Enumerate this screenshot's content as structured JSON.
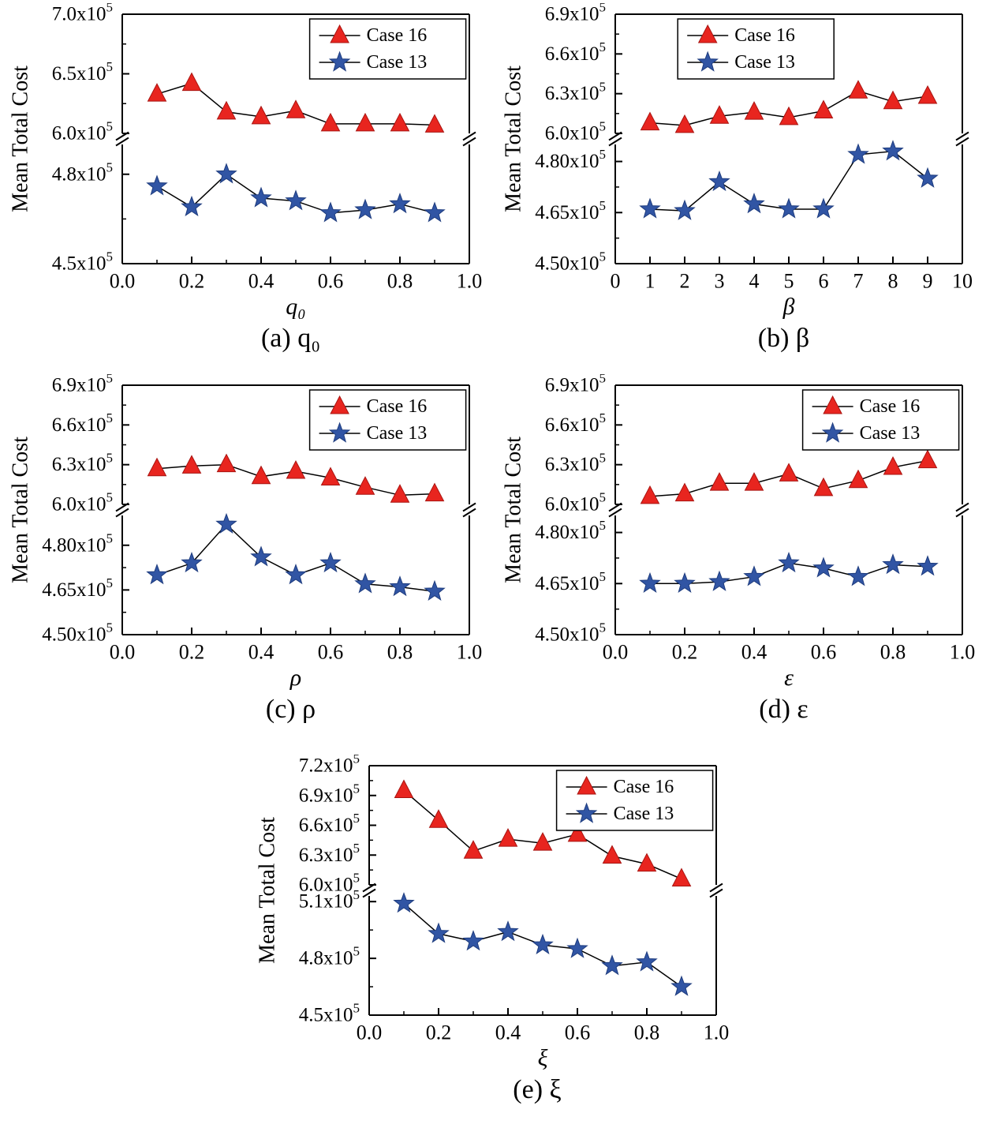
{
  "page": {
    "background": "#ffffff"
  },
  "colors": {
    "case16_fill": "#e8251f",
    "case16_edge": "#a81410",
    "case13_fill": "#3155a4",
    "case13_edge": "#1e3c7e",
    "line": "#000000",
    "axis": "#000000"
  },
  "chart_data": [
    {
      "id": "a",
      "type": "line",
      "caption": "(a) q₀",
      "xlabel": "q₀",
      "ylabel": "Mean Total Cost",
      "y_unit": "x10^5",
      "axis_break": true,
      "xlim": [
        0.0,
        1.0
      ],
      "x_ticks": [
        {
          "v": 0.0,
          "label": "0.0"
        },
        {
          "v": 0.2,
          "label": "0.2"
        },
        {
          "v": 0.4,
          "label": "0.4"
        },
        {
          "v": 0.6,
          "label": "0.6"
        },
        {
          "v": 0.8,
          "label": "0.8"
        },
        {
          "v": 1.0,
          "label": "1.0"
        }
      ],
      "x_minors": [
        0.1,
        0.3,
        0.5,
        0.7,
        0.9
      ],
      "top_ylim": [
        6.0,
        7.0
      ],
      "top_ticks": [
        {
          "v": 7.0,
          "label": "7.0x10^5"
        },
        {
          "v": 6.5,
          "label": "6.5x10^5"
        },
        {
          "v": 6.0,
          "label": "6.0x10^5"
        }
      ],
      "bottom_ylim": [
        4.5,
        4.9
      ],
      "bottom_ticks": [
        {
          "v": 4.8,
          "label": "4.8x10^5"
        },
        {
          "v": 4.5,
          "label": "4.5x10^5"
        }
      ],
      "legend_right_frac": 0.99,
      "x": [
        0.1,
        0.2,
        0.3,
        0.4,
        0.5,
        0.6,
        0.7,
        0.8,
        0.9
      ],
      "series": [
        {
          "name": "Case 16",
          "marker": "triangle",
          "panel": "top",
          "values": [
            6.33,
            6.42,
            6.18,
            6.14,
            6.19,
            6.08,
            6.08,
            6.08,
            6.07
          ]
        },
        {
          "name": "Case 13",
          "marker": "star",
          "panel": "bottom",
          "values": [
            4.76,
            4.69,
            4.8,
            4.72,
            4.71,
            4.67,
            4.68,
            4.7,
            4.67
          ]
        }
      ]
    },
    {
      "id": "b",
      "type": "line",
      "caption": "(b) β",
      "xlabel": "β",
      "ylabel": "Mean Total Cost",
      "y_unit": "x10^5",
      "axis_break": true,
      "xlim": [
        0,
        10
      ],
      "x_ticks": [
        {
          "v": 0,
          "label": "0"
        },
        {
          "v": 1,
          "label": "1"
        },
        {
          "v": 2,
          "label": "2"
        },
        {
          "v": 3,
          "label": "3"
        },
        {
          "v": 4,
          "label": "4"
        },
        {
          "v": 5,
          "label": "5"
        },
        {
          "v": 6,
          "label": "6"
        },
        {
          "v": 7,
          "label": "7"
        },
        {
          "v": 8,
          "label": "8"
        },
        {
          "v": 9,
          "label": "9"
        },
        {
          "v": 10,
          "label": "10"
        }
      ],
      "x_minors": [],
      "top_ylim": [
        6.0,
        6.9
      ],
      "top_ticks": [
        {
          "v": 6.9,
          "label": "6.9x10^5"
        },
        {
          "v": 6.6,
          "label": "6.6x10^5"
        },
        {
          "v": 6.3,
          "label": "6.3x10^5"
        },
        {
          "v": 6.0,
          "label": "6.0x10^5"
        }
      ],
      "bottom_ylim": [
        4.5,
        4.85
      ],
      "bottom_ticks": [
        {
          "v": 4.8,
          "label": "4.80x10^5"
        },
        {
          "v": 4.65,
          "label": "4.65x10^5"
        },
        {
          "v": 4.5,
          "label": "4.50x10^5"
        }
      ],
      "legend_right_frac": 0.63,
      "x": [
        1,
        2,
        3,
        4,
        5,
        6,
        7,
        8,
        9
      ],
      "series": [
        {
          "name": "Case 16",
          "marker": "triangle",
          "panel": "top",
          "values": [
            6.08,
            6.06,
            6.13,
            6.16,
            6.12,
            6.17,
            6.32,
            6.24,
            6.28
          ]
        },
        {
          "name": "Case 13",
          "marker": "star",
          "panel": "bottom",
          "values": [
            4.66,
            4.655,
            4.74,
            4.675,
            4.66,
            4.66,
            4.82,
            4.83,
            4.75
          ]
        }
      ]
    },
    {
      "id": "c",
      "type": "line",
      "caption": "(c) ρ",
      "xlabel": "ρ",
      "ylabel": "Mean Total Cost",
      "y_unit": "x10^5",
      "axis_break": true,
      "xlim": [
        0.0,
        1.0
      ],
      "x_ticks": [
        {
          "v": 0.0,
          "label": "0.0"
        },
        {
          "v": 0.2,
          "label": "0.2"
        },
        {
          "v": 0.4,
          "label": "0.4"
        },
        {
          "v": 0.6,
          "label": "0.6"
        },
        {
          "v": 0.8,
          "label": "0.8"
        },
        {
          "v": 1.0,
          "label": "1.0"
        }
      ],
      "x_minors": [
        0.1,
        0.3,
        0.5,
        0.7,
        0.9
      ],
      "top_ylim": [
        6.0,
        6.9
      ],
      "top_ticks": [
        {
          "v": 6.9,
          "label": "6.9x10^5"
        },
        {
          "v": 6.6,
          "label": "6.6x10^5"
        },
        {
          "v": 6.3,
          "label": "6.3x10^5"
        },
        {
          "v": 6.0,
          "label": "6.0x10^5"
        }
      ],
      "bottom_ylim": [
        4.5,
        4.9
      ],
      "bottom_ticks": [
        {
          "v": 4.8,
          "label": "4.80x10^5"
        },
        {
          "v": 4.65,
          "label": "4.65x10^5"
        },
        {
          "v": 4.5,
          "label": "4.50x10^5"
        }
      ],
      "legend_right_frac": 0.99,
      "x": [
        0.1,
        0.2,
        0.3,
        0.4,
        0.5,
        0.6,
        0.7,
        0.8,
        0.9
      ],
      "series": [
        {
          "name": "Case 16",
          "marker": "triangle",
          "panel": "top",
          "values": [
            6.27,
            6.29,
            6.3,
            6.21,
            6.25,
            6.2,
            6.13,
            6.07,
            6.08
          ]
        },
        {
          "name": "Case 13",
          "marker": "star",
          "panel": "bottom",
          "values": [
            4.7,
            4.74,
            4.87,
            4.76,
            4.7,
            4.74,
            4.67,
            4.66,
            4.645
          ]
        }
      ]
    },
    {
      "id": "d",
      "type": "line",
      "caption": "(d) ε",
      "xlabel": "ε",
      "ylabel": "Mean Total Cost",
      "y_unit": "x10^5",
      "axis_break": true,
      "xlim": [
        0.0,
        1.0
      ],
      "x_ticks": [
        {
          "v": 0.0,
          "label": "0.0"
        },
        {
          "v": 0.2,
          "label": "0.2"
        },
        {
          "v": 0.4,
          "label": "0.4"
        },
        {
          "v": 0.6,
          "label": "0.6"
        },
        {
          "v": 0.8,
          "label": "0.8"
        },
        {
          "v": 1.0,
          "label": "1.0"
        }
      ],
      "x_minors": [
        0.1,
        0.3,
        0.5,
        0.7,
        0.9
      ],
      "top_ylim": [
        6.0,
        6.9
      ],
      "top_ticks": [
        {
          "v": 6.9,
          "label": "6.9x10^5"
        },
        {
          "v": 6.6,
          "label": "6.6x10^5"
        },
        {
          "v": 6.3,
          "label": "6.3x10^5"
        },
        {
          "v": 6.0,
          "label": "6.0x10^5"
        }
      ],
      "bottom_ylim": [
        4.5,
        4.85
      ],
      "bottom_ticks": [
        {
          "v": 4.8,
          "label": "4.80x10^5"
        },
        {
          "v": 4.65,
          "label": "4.65x10^5"
        },
        {
          "v": 4.5,
          "label": "4.50x10^5"
        }
      ],
      "legend_right_frac": 0.99,
      "x": [
        0.1,
        0.2,
        0.3,
        0.4,
        0.5,
        0.6,
        0.7,
        0.8,
        0.9
      ],
      "series": [
        {
          "name": "Case 16",
          "marker": "triangle",
          "panel": "top",
          "values": [
            6.06,
            6.08,
            6.16,
            6.16,
            6.23,
            6.12,
            6.18,
            6.28,
            6.33
          ]
        },
        {
          "name": "Case 13",
          "marker": "star",
          "panel": "bottom",
          "values": [
            4.65,
            4.65,
            4.655,
            4.67,
            4.71,
            4.695,
            4.67,
            4.705,
            4.7
          ]
        }
      ]
    },
    {
      "id": "e",
      "type": "line",
      "caption": "(e) ξ",
      "xlabel": "ξ",
      "ylabel": "Mean Total Cost",
      "y_unit": "x10^5",
      "axis_break": true,
      "xlim": [
        0.0,
        1.0
      ],
      "x_ticks": [
        {
          "v": 0.0,
          "label": "0.0"
        },
        {
          "v": 0.2,
          "label": "0.2"
        },
        {
          "v": 0.4,
          "label": "0.4"
        },
        {
          "v": 0.6,
          "label": "0.6"
        },
        {
          "v": 0.8,
          "label": "0.8"
        },
        {
          "v": 1.0,
          "label": "1.0"
        }
      ],
      "x_minors": [
        0.1,
        0.3,
        0.5,
        0.7,
        0.9
      ],
      "top_ylim": [
        6.0,
        7.2
      ],
      "top_ticks": [
        {
          "v": 7.2,
          "label": "7.2x10^5"
        },
        {
          "v": 6.9,
          "label": "6.9x10^5"
        },
        {
          "v": 6.6,
          "label": "6.6x10^5"
        },
        {
          "v": 6.3,
          "label": "6.3x10^5"
        },
        {
          "v": 6.0,
          "label": "6.0x10^5"
        }
      ],
      "bottom_ylim": [
        4.5,
        5.13
      ],
      "bottom_ticks": [
        {
          "v": 5.1,
          "label": "5.1x10^5"
        },
        {
          "v": 4.8,
          "label": "4.8x10^5"
        },
        {
          "v": 4.5,
          "label": "4.5x10^5"
        }
      ],
      "legend_right_frac": 0.99,
      "x": [
        0.1,
        0.2,
        0.3,
        0.4,
        0.5,
        0.6,
        0.7,
        0.8,
        0.9
      ],
      "series": [
        {
          "name": "Case 16",
          "marker": "triangle",
          "panel": "top",
          "values": [
            6.95,
            6.65,
            6.34,
            6.46,
            6.42,
            6.51,
            6.29,
            6.21,
            6.06
          ]
        },
        {
          "name": "Case 13",
          "marker": "star",
          "panel": "bottom",
          "values": [
            5.09,
            4.93,
            4.89,
            4.94,
            4.87,
            4.85,
            4.76,
            4.78,
            4.65
          ]
        }
      ]
    }
  ]
}
